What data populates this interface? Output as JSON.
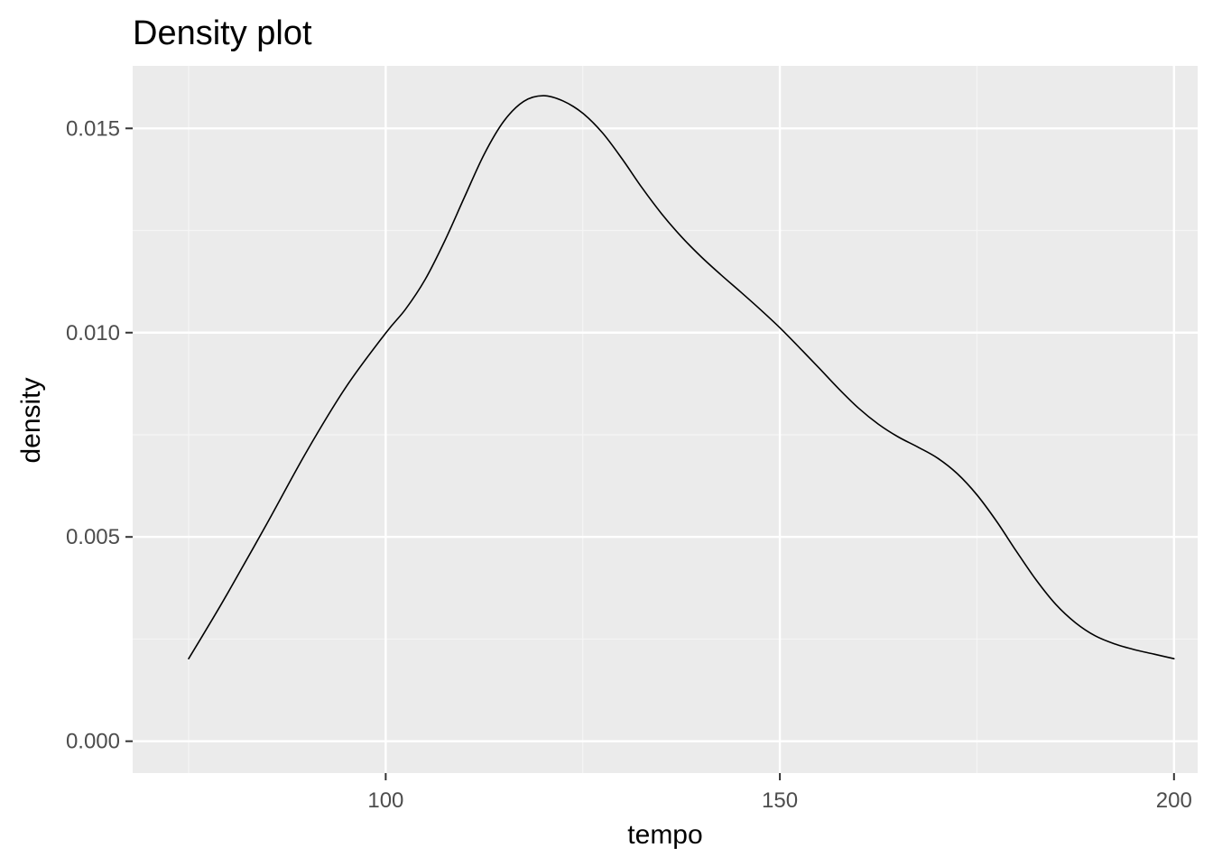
{
  "chart_data": {
    "type": "line",
    "title": "Density plot",
    "xlabel": "tempo",
    "ylabel": "density",
    "xlim": [
      67.9,
      203.0
    ],
    "ylim": [
      -0.00078,
      0.01653
    ],
    "x_ticks": [
      {
        "value": 100,
        "label": "100"
      },
      {
        "value": 150,
        "label": "150"
      },
      {
        "value": 200,
        "label": "200"
      }
    ],
    "y_ticks": [
      {
        "value": 0.0,
        "label": "0.000"
      },
      {
        "value": 0.005,
        "label": "0.005"
      },
      {
        "value": 0.01,
        "label": "0.010"
      },
      {
        "value": 0.015,
        "label": "0.015"
      }
    ],
    "x_minor": [
      75,
      125,
      175
    ],
    "y_minor": [
      0.0025,
      0.0075,
      0.0125
    ],
    "grid": true,
    "series": [
      {
        "values": [
          [
            75.0,
            0.00202
          ],
          [
            77.5,
            0.00282
          ],
          [
            80.0,
            0.00364
          ],
          [
            85.0,
            0.00535
          ],
          [
            90.0,
            0.0071
          ],
          [
            95.0,
            0.00868
          ],
          [
            100.0,
            0.00999
          ],
          [
            102.5,
            0.01057
          ],
          [
            105.0,
            0.0113
          ],
          [
            107.5,
            0.01225
          ],
          [
            110.0,
            0.01332
          ],
          [
            112.5,
            0.01437
          ],
          [
            115.0,
            0.01518
          ],
          [
            117.5,
            0.01566
          ],
          [
            120.0,
            0.0158
          ],
          [
            122.5,
            0.01567
          ],
          [
            125.0,
            0.01537
          ],
          [
            127.5,
            0.01489
          ],
          [
            130.0,
            0.01425
          ],
          [
            132.5,
            0.01355
          ],
          [
            135.0,
            0.01291
          ],
          [
            137.5,
            0.01235
          ],
          [
            140.0,
            0.01186
          ],
          [
            142.5,
            0.01142
          ],
          [
            145.0,
            0.011
          ],
          [
            147.5,
            0.01057
          ],
          [
            150.0,
            0.01012
          ],
          [
            152.5,
            0.00963
          ],
          [
            155.0,
            0.00913
          ],
          [
            157.5,
            0.00862
          ],
          [
            160.0,
            0.00815
          ],
          [
            162.5,
            0.00776
          ],
          [
            165.0,
            0.00745
          ],
          [
            167.5,
            0.0072
          ],
          [
            170.0,
            0.00693
          ],
          [
            172.5,
            0.00655
          ],
          [
            175.0,
            0.00603
          ],
          [
            177.5,
            0.00538
          ],
          [
            180.0,
            0.00465
          ],
          [
            182.5,
            0.00395
          ],
          [
            185.0,
            0.00335
          ],
          [
            187.5,
            0.0029
          ],
          [
            190.0,
            0.00258
          ],
          [
            192.5,
            0.00238
          ],
          [
            195.0,
            0.00224
          ],
          [
            197.5,
            0.00213
          ],
          [
            200.0,
            0.00202
          ]
        ]
      }
    ]
  },
  "colors": {
    "panel_background": "#ebebeb",
    "grid_major": "#ffffff",
    "grid_minor": "#f5f5f5",
    "line": "#000000",
    "tick_label": "#4d4d4d",
    "axis_tick": "#333333"
  }
}
